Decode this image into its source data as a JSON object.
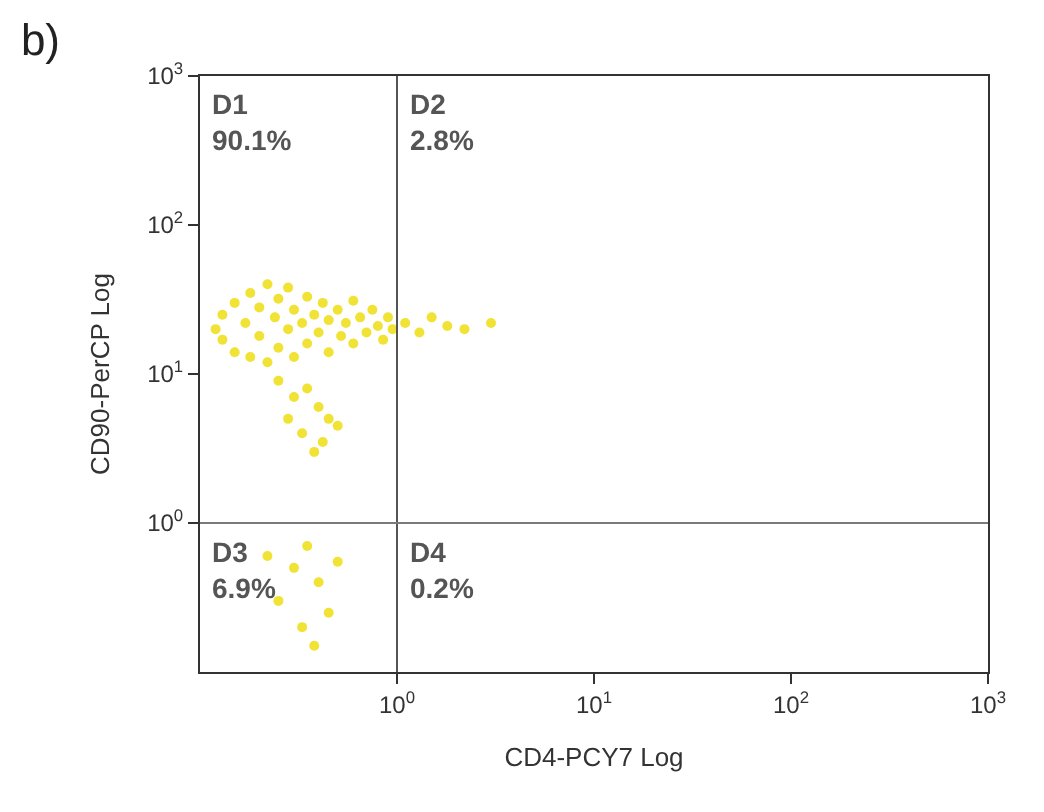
{
  "chart_data": {
    "type": "scatter",
    "title": "b)",
    "xlabel": "CD4-PCY7 Log",
    "ylabel": "CD90-PerCP Log",
    "log": "xy",
    "xlim": [
      0.1,
      1000
    ],
    "ylim": [
      0.1,
      1000
    ],
    "xticks": [
      {
        "value": 1,
        "label": "10$^{0}$"
      },
      {
        "value": 10,
        "label": "10$^{1}$"
      },
      {
        "value": 100,
        "label": "10$^{2}$"
      },
      {
        "value": 1000,
        "label": "10$^{3}$"
      }
    ],
    "yticks": [
      {
        "value": 1,
        "label": "10$^{0}$"
      },
      {
        "value": 10,
        "label": "10$^{1}$"
      },
      {
        "value": 100,
        "label": "10$^{2}$"
      },
      {
        "value": 1000,
        "label": "10$^{3}$"
      }
    ],
    "series": [
      {
        "color": "#f0e020",
        "x": [
          0.12,
          0.13,
          0.13,
          0.15,
          0.15,
          0.17,
          0.18,
          0.18,
          0.2,
          0.2,
          0.22,
          0.22,
          0.24,
          0.25,
          0.25,
          0.28,
          0.28,
          0.3,
          0.3,
          0.33,
          0.35,
          0.35,
          0.38,
          0.4,
          0.42,
          0.45,
          0.45,
          0.5,
          0.52,
          0.55,
          0.6,
          0.6,
          0.65,
          0.7,
          0.75,
          0.8,
          0.85,
          0.9,
          0.95,
          0.25,
          0.3,
          0.35,
          0.28,
          0.4,
          0.33,
          0.45,
          0.38,
          0.42,
          0.5,
          1.1,
          1.3,
          1.5,
          1.8,
          2.2,
          3,
          0.22,
          0.25,
          0.3,
          0.33,
          0.35,
          0.4,
          0.45,
          0.5,
          0.38
        ],
        "values": [
          20,
          25,
          17,
          30,
          14,
          22,
          35,
          13,
          28,
          18,
          40,
          12,
          24,
          32,
          15,
          20,
          38,
          13,
          27,
          22,
          33,
          16,
          25,
          19,
          30,
          14,
          23,
          27,
          18,
          22,
          31,
          16,
          24,
          19,
          27,
          21,
          17,
          24,
          20,
          9,
          7,
          8,
          5,
          6,
          4,
          5,
          3,
          3.5,
          4.5,
          22,
          19,
          24,
          21,
          20,
          22,
          0.6,
          0.3,
          0.5,
          0.2,
          0.7,
          0.4,
          0.25,
          0.55,
          0.15
        ]
      }
    ],
    "ref_lines": [
      {
        "axis": "x",
        "value": 1,
        "color": "#555555"
      },
      {
        "axis": "y",
        "value": 1,
        "color": "#7a7a7a"
      }
    ],
    "annotations": [
      "D1\n90.1%",
      "D2\n2.8%",
      "D3\n6.9%",
      "D4\n0.2%"
    ]
  }
}
